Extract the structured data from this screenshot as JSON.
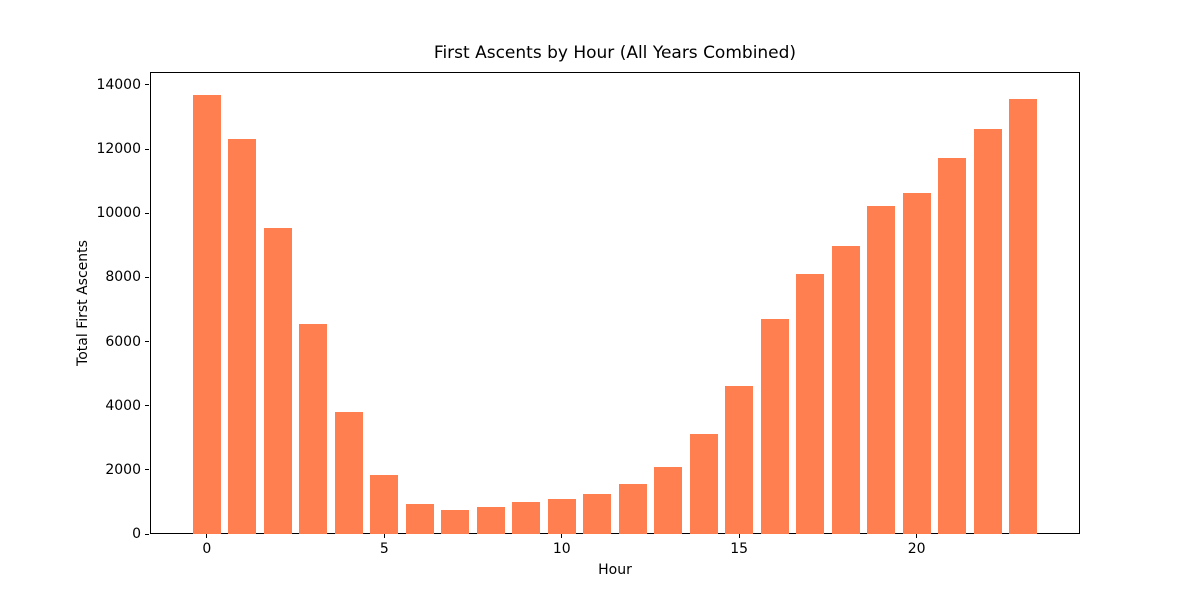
{
  "chart_data": {
    "type": "bar",
    "title": "First Ascents by Hour (All Years Combined)",
    "xlabel": "Hour",
    "ylabel": "Total First Ascents",
    "categories": [
      0,
      1,
      2,
      3,
      4,
      5,
      6,
      7,
      8,
      9,
      10,
      11,
      12,
      13,
      14,
      15,
      16,
      17,
      18,
      19,
      20,
      21,
      22,
      23
    ],
    "values": [
      13700,
      12300,
      9550,
      6550,
      3800,
      1830,
      930,
      750,
      855,
      1000,
      1100,
      1240,
      1550,
      2090,
      3120,
      4610,
      6700,
      8120,
      8980,
      10230,
      10630,
      11710,
      12620,
      13570
    ],
    "bar_color": "#FF7F50",
    "bar_width": 0.8,
    "xlim": [
      -1.6,
      24.6
    ],
    "ylim": [
      0,
      14400
    ],
    "yticks": [
      0,
      2000,
      4000,
      6000,
      8000,
      10000,
      12000,
      14000
    ],
    "xticks": [
      0,
      5,
      10,
      15,
      20
    ],
    "grid": false,
    "legend": null,
    "background": "#ffffff",
    "text_color": "#000000"
  }
}
